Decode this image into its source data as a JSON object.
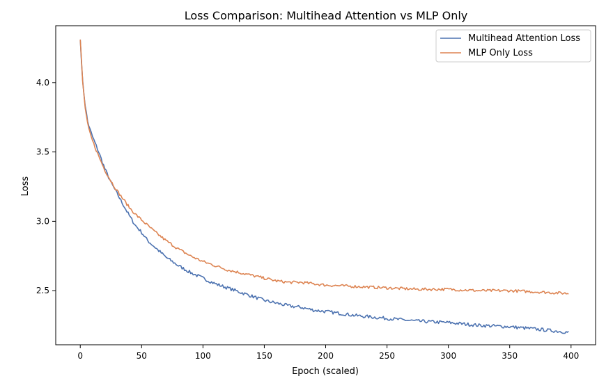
{
  "chart_data": {
    "type": "line",
    "title": "Loss Comparison: Multihead Attention vs MLP Only",
    "xlabel": "Epoch (scaled)",
    "ylabel": "Loss",
    "xlim": [
      -20,
      420
    ],
    "ylim": [
      2.11,
      4.41
    ],
    "xticks": [
      0,
      50,
      100,
      150,
      200,
      250,
      300,
      350,
      400
    ],
    "yticks": [
      2.5,
      3.0,
      3.5,
      4.0
    ],
    "xtick_labels": [
      "0",
      "50",
      "100",
      "150",
      "200",
      "250",
      "300",
      "350",
      "400"
    ],
    "ytick_labels": [
      "2.5",
      "3.0",
      "3.5",
      "4.0"
    ],
    "grid": false,
    "legend_position": "top-right",
    "noise_seed": 7,
    "series": [
      {
        "name": "Multihead Attention Loss",
        "color": "#4c72b0",
        "noise": 0.012,
        "x": [
          0,
          2,
          4,
          6,
          8,
          10,
          15,
          20,
          25,
          30,
          35,
          40,
          45,
          50,
          55,
          60,
          70,
          80,
          90,
          100,
          110,
          120,
          130,
          140,
          150,
          160,
          170,
          180,
          190,
          200,
          225,
          250,
          275,
          300,
          325,
          350,
          375,
          398
        ],
        "y": [
          4.31,
          4.0,
          3.84,
          3.72,
          3.66,
          3.61,
          3.5,
          3.38,
          3.28,
          3.2,
          3.12,
          3.04,
          2.97,
          2.92,
          2.86,
          2.82,
          2.74,
          2.68,
          2.63,
          2.59,
          2.55,
          2.52,
          2.49,
          2.46,
          2.43,
          2.41,
          2.39,
          2.38,
          2.36,
          2.35,
          2.32,
          2.3,
          2.28,
          2.27,
          2.25,
          2.24,
          2.22,
          2.2
        ]
      },
      {
        "name": "MLP Only Loss",
        "color": "#dd8452",
        "noise": 0.01,
        "x": [
          0,
          2,
          4,
          6,
          8,
          10,
          15,
          20,
          25,
          30,
          35,
          40,
          45,
          50,
          55,
          60,
          70,
          80,
          90,
          100,
          110,
          120,
          130,
          140,
          150,
          160,
          170,
          180,
          190,
          200,
          225,
          250,
          275,
          300,
          325,
          350,
          375,
          398
        ],
        "y": [
          4.31,
          4.0,
          3.82,
          3.7,
          3.63,
          3.58,
          3.47,
          3.37,
          3.29,
          3.22,
          3.16,
          3.1,
          3.05,
          3.01,
          2.97,
          2.93,
          2.86,
          2.8,
          2.75,
          2.71,
          2.68,
          2.65,
          2.63,
          2.61,
          2.59,
          2.57,
          2.56,
          2.56,
          2.55,
          2.54,
          2.53,
          2.52,
          2.51,
          2.51,
          2.5,
          2.5,
          2.49,
          2.48
        ]
      }
    ]
  }
}
